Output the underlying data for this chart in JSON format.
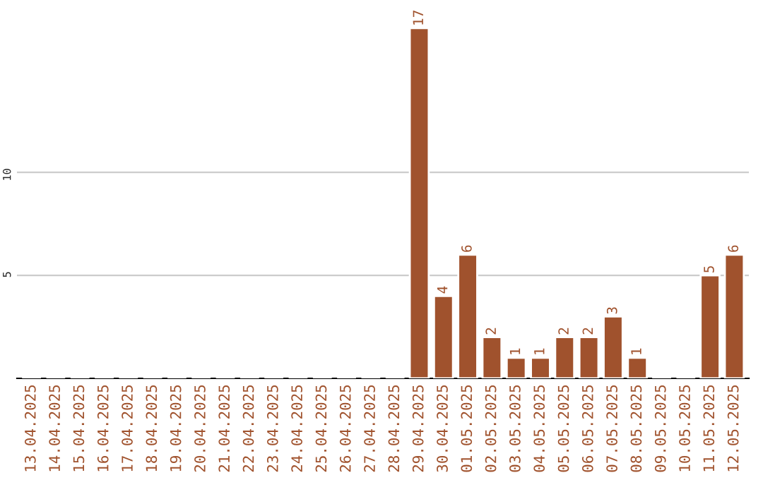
{
  "chart_data": {
    "type": "bar",
    "categories": [
      "13.04.2025",
      "14.04.2025",
      "15.04.2025",
      "16.04.2025",
      "17.04.2025",
      "18.04.2025",
      "19.04.2025",
      "20.04.2025",
      "21.04.2025",
      "22.04.2025",
      "23.04.2025",
      "24.04.2025",
      "25.04.2025",
      "26.04.2025",
      "27.04.2025",
      "28.04.2025",
      "29.04.2025",
      "30.04.2025",
      "01.05.2025",
      "02.05.2025",
      "03.05.2025",
      "04.05.2025",
      "05.05.2025",
      "06.05.2025",
      "07.05.2025",
      "08.05.2025",
      "09.05.2025",
      "10.05.2025",
      "11.05.2025",
      "12.05.2025"
    ],
    "values": [
      0,
      0,
      0,
      0,
      0,
      0,
      0,
      0,
      0,
      0,
      0,
      0,
      0,
      0,
      0,
      0,
      17,
      4,
      6,
      2,
      1,
      1,
      2,
      2,
      3,
      1,
      0,
      0,
      5,
      6
    ],
    "value_labels": [
      null,
      null,
      null,
      null,
      null,
      null,
      null,
      null,
      null,
      null,
      null,
      null,
      null,
      null,
      null,
      null,
      "17",
      "4",
      "6",
      "2",
      "1",
      "1",
      "2",
      "2",
      "3",
      "1",
      null,
      null,
      "5",
      "6"
    ],
    "color": "#a0522d",
    "ylim": [
      0,
      17.2
    ],
    "yticks": [
      5,
      10
    ],
    "grid": "y"
  }
}
